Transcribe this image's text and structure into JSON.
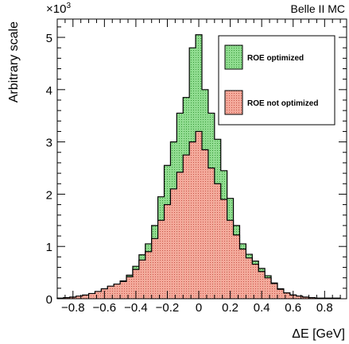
{
  "chart_data": {
    "type": "bar",
    "title": "",
    "experiment_label": "Belle II MC",
    "xlabel": "ΔE [GeV]",
    "ylabel": "Arbitrary scale",
    "y_multiplier": "×10",
    "y_multiplier_exp": "3",
    "xlim": [
      -0.9,
      0.94
    ],
    "ylim": [
      0,
      5.35
    ],
    "x_ticks": [
      -0.8,
      -0.6,
      -0.4,
      -0.2,
      0,
      0.2,
      0.4,
      0.6,
      0.8
    ],
    "x_tick_labels": [
      "−0.8",
      "−0.6",
      "−0.4",
      "−0.2",
      "0",
      "0.2",
      "0.4",
      "0.6",
      "0.8"
    ],
    "y_ticks": [
      1,
      2,
      3,
      4,
      5
    ],
    "y_tick_labels": [
      "1",
      "2",
      "3",
      "4",
      "5"
    ],
    "legend_position": "top-right",
    "bins": {
      "edges": [
        -0.9,
        -0.86,
        -0.82,
        -0.78,
        -0.74,
        -0.7,
        -0.66,
        -0.62,
        -0.58,
        -0.54,
        -0.5,
        -0.46,
        -0.42,
        -0.38,
        -0.34,
        -0.3,
        -0.26,
        -0.22,
        -0.18,
        -0.14,
        -0.1,
        -0.06,
        -0.02,
        0.02,
        0.06,
        0.1,
        0.14,
        0.18,
        0.22,
        0.26,
        0.3,
        0.34,
        0.38,
        0.42,
        0.46,
        0.5,
        0.54,
        0.58,
        0.62,
        0.66,
        0.7,
        0.74,
        0.78,
        0.82,
        0.86,
        0.9
      ]
    },
    "series": [
      {
        "name": "ROE optimized",
        "color": "#7fd47f",
        "edge_color": "#000000",
        "values": [
          0.01,
          0.02,
          0.03,
          0.04,
          0.06,
          0.09,
          0.13,
          0.18,
          0.23,
          0.28,
          0.34,
          0.45,
          0.62,
          0.84,
          1.05,
          1.4,
          1.95,
          2.55,
          3.0,
          3.55,
          3.85,
          4.8,
          5.05,
          4.0,
          3.55,
          3.05,
          2.45,
          1.92,
          1.4,
          1.05,
          0.85,
          0.72,
          0.58,
          0.44,
          0.3,
          0.19,
          0.11,
          0.07,
          0.05,
          0.03,
          0.02,
          0.01,
          0.01,
          0.01,
          0.01
        ]
      },
      {
        "name": "ROE not optimized",
        "color": "#f29a8a",
        "edge_color": "#000000",
        "values": [
          0.01,
          0.02,
          0.03,
          0.05,
          0.07,
          0.1,
          0.14,
          0.19,
          0.24,
          0.28,
          0.33,
          0.42,
          0.56,
          0.74,
          0.9,
          1.15,
          1.5,
          1.8,
          2.1,
          2.42,
          2.75,
          3.0,
          3.2,
          2.85,
          2.5,
          2.2,
          1.9,
          1.5,
          1.22,
          0.95,
          0.78,
          0.66,
          0.52,
          0.4,
          0.29,
          0.18,
          0.11,
          0.07,
          0.05,
          0.03,
          0.02,
          0.01,
          0.01,
          0.01,
          0.01
        ]
      }
    ]
  }
}
